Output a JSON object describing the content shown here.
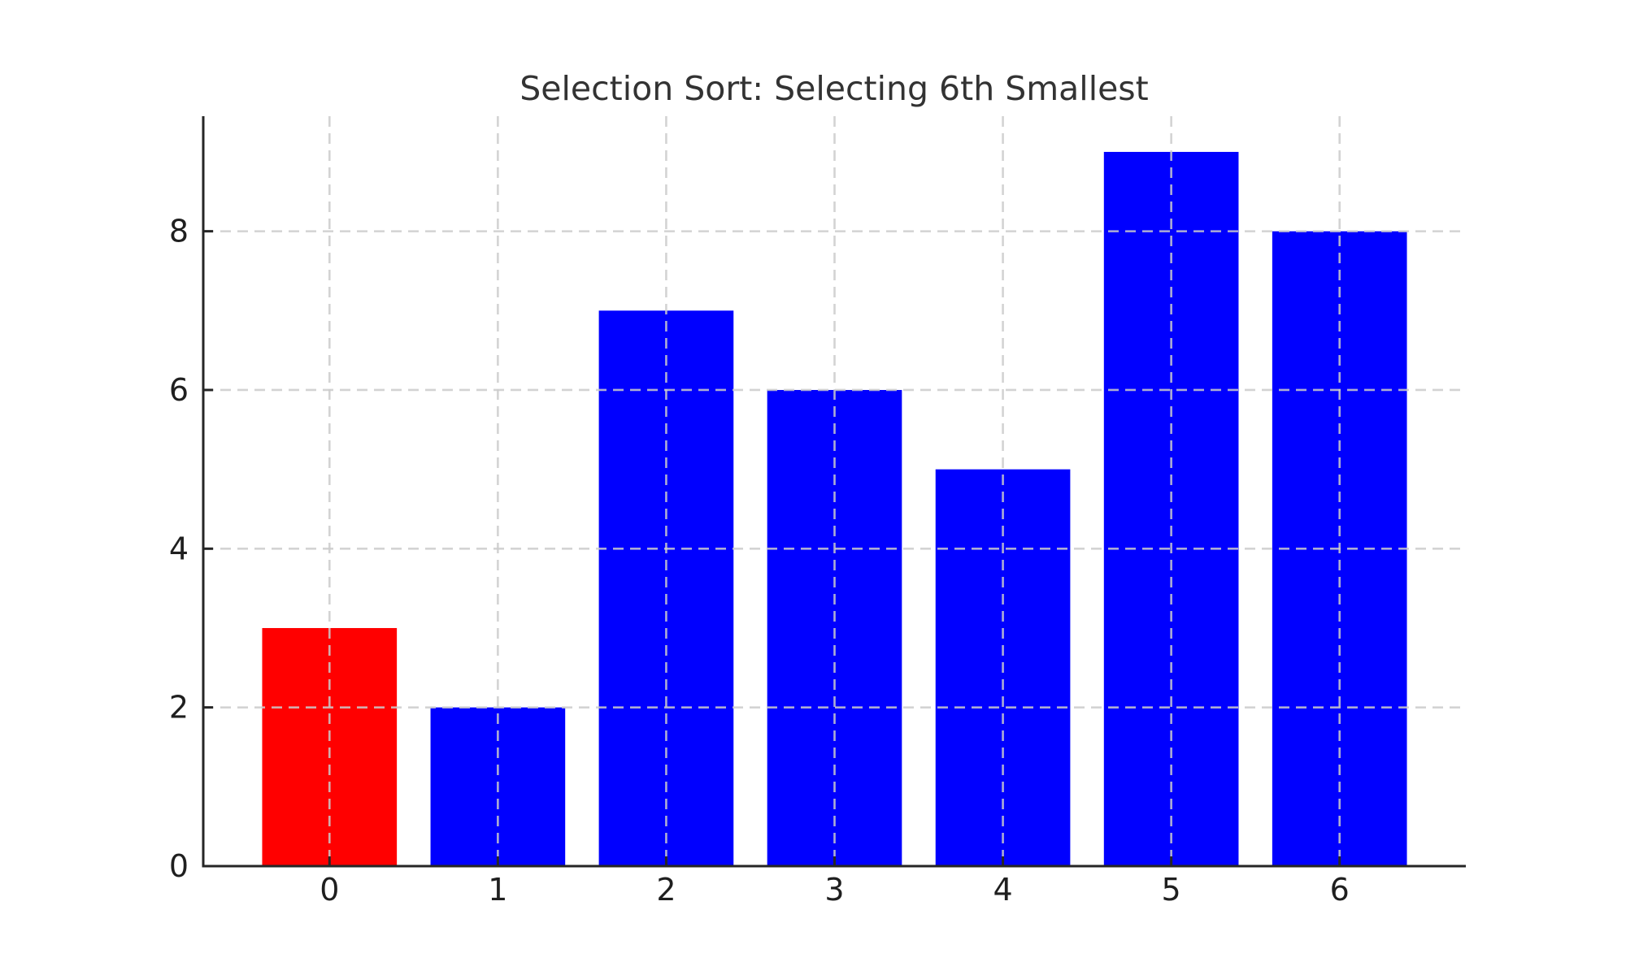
{
  "chart_data": {
    "type": "bar",
    "title": "Selection Sort: Selecting 6th Smallest",
    "categories": [
      "0",
      "1",
      "2",
      "3",
      "4",
      "5",
      "6"
    ],
    "values": [
      3,
      2,
      7,
      6,
      5,
      9,
      8
    ],
    "bar_colors": [
      "#ff0000",
      "#0000ff",
      "#0000ff",
      "#0000ff",
      "#0000ff",
      "#0000ff",
      "#0000ff"
    ],
    "highlight_color": "#ff0000",
    "default_color": "#0000ff",
    "highlighted_index": 0,
    "xlabel": "",
    "ylabel": "",
    "yticks": [
      0,
      2,
      4,
      6,
      8
    ],
    "ylim": [
      0,
      9.45
    ],
    "xlim": [
      -0.75,
      6.75
    ],
    "bar_width": 0.8,
    "grid": true,
    "grid_line_style": "dashed",
    "grid_color": "#cccccc",
    "axis_color": "#262626",
    "tick_label_color": "#1f1f1f",
    "title_color": "#333333",
    "background_color": "#ffffff",
    "legend": null
  }
}
